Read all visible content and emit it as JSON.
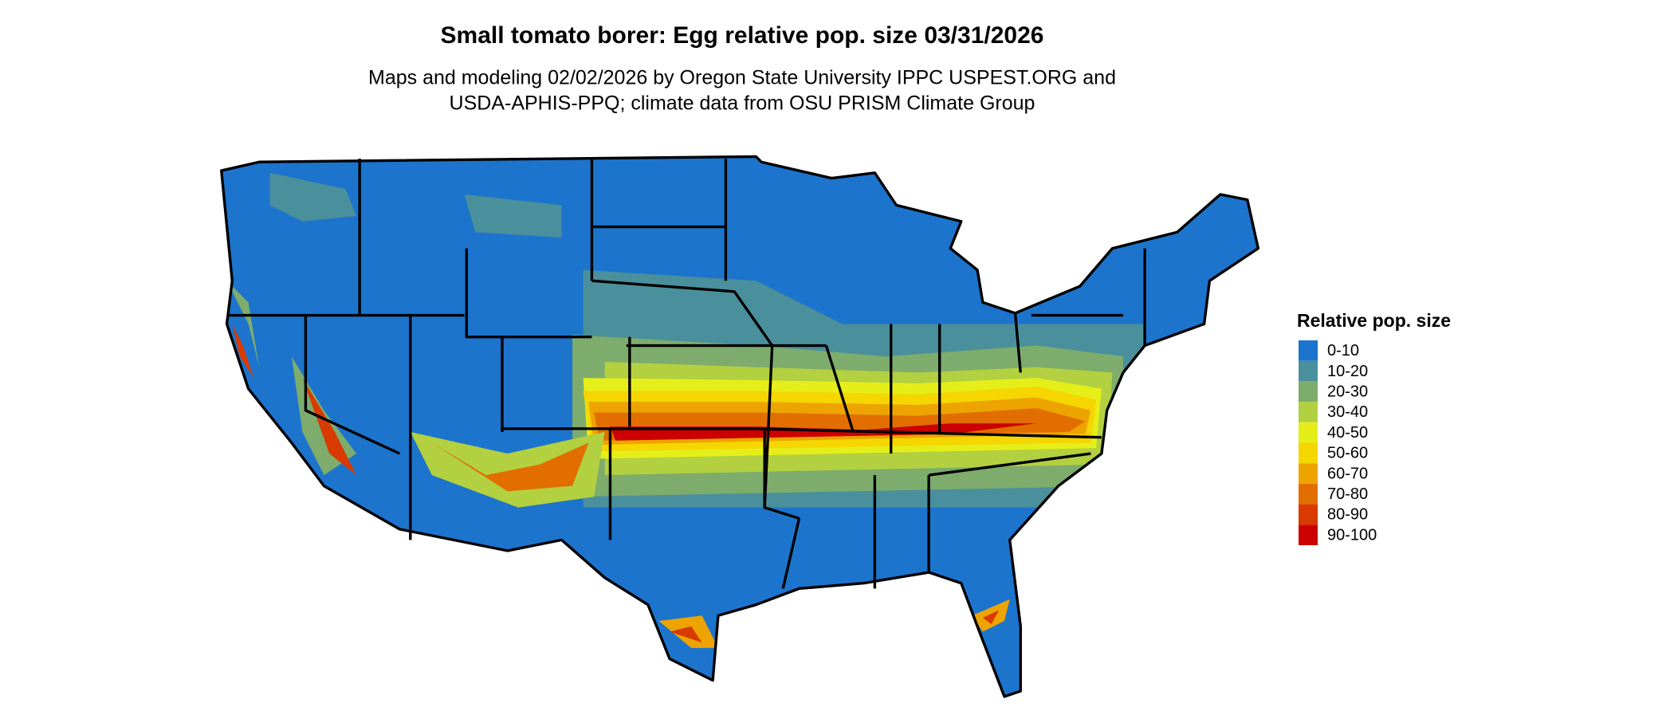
{
  "header": {
    "title": "Small tomato borer: Egg relative pop. size 03/31/2026",
    "subtitle": [
      "Maps and modeling 02/02/2026 by Oregon State University IPPC USPEST.ORG and",
      "USDA-APHIS-PPQ; climate data from OSU PRISM Climate Group"
    ]
  },
  "legend": {
    "title": "Relative pop. size",
    "items": [
      {
        "label": "0-10",
        "color": "#1c74cd"
      },
      {
        "label": "10-20",
        "color": "#4a8f9c"
      },
      {
        "label": "20-30",
        "color": "#7dac6c"
      },
      {
        "label": "30-40",
        "color": "#b2d040"
      },
      {
        "label": "40-50",
        "color": "#e6ee1a"
      },
      {
        "label": "50-60",
        "color": "#f5d600"
      },
      {
        "label": "60-70",
        "color": "#eea400"
      },
      {
        "label": "70-80",
        "color": "#e26e00"
      },
      {
        "label": "80-90",
        "color": "#d83a00"
      },
      {
        "label": "90-100",
        "color": "#cc0000"
      }
    ]
  }
}
